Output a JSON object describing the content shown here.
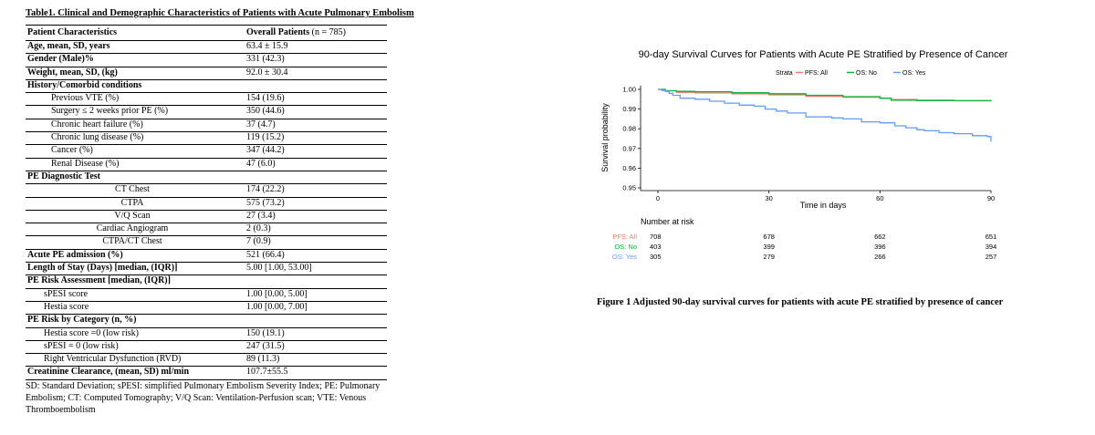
{
  "table": {
    "title": "Table1. Clinical and Demographic Characteristics of Patients with Acute Pulmonary Embolism",
    "header": {
      "col1": "Patient Characteristics",
      "col2_bold": "Overall Patients",
      "col2_rest": " (n = 785)"
    },
    "rows": [
      {
        "label": "Age, mean, SD, years",
        "value": "63.4 ± 15.9",
        "style": "bold"
      },
      {
        "label": "Gender (Male)%",
        "value": "331 (42.3)",
        "style": "bold"
      },
      {
        "label": "Weight, mean, SD, (kg)",
        "value": "92.0 ± 30.4",
        "style": "bold"
      },
      {
        "label": "History/Comorbid conditions",
        "value": "",
        "style": "bold"
      },
      {
        "label": "Previous VTE (%)",
        "value": "154 (19.6)",
        "style": "i1"
      },
      {
        "label": "Surgery ≤ 2 weeks prior PE (%)",
        "value": "350 (44.6)",
        "style": "i1"
      },
      {
        "label": "Chronic heart failure (%)",
        "value": "37 (4.7)",
        "style": "i1"
      },
      {
        "label": "Chronic lung disease (%)",
        "value": "119 (15.2)",
        "style": "i1"
      },
      {
        "label": "Cancer (%)",
        "value": "347 (44.2)",
        "style": "i1"
      },
      {
        "label": "Renal Disease (%)",
        "value": "47 (6.0)",
        "style": "i1"
      },
      {
        "label": "PE Diagnostic Test",
        "value": "",
        "style": "bold"
      },
      {
        "label": "CT Chest",
        "value": "174 (22.2)",
        "style": "ct"
      },
      {
        "label": "CTPA",
        "value": "575 (73.2)",
        "style": "ct"
      },
      {
        "label": "V/Q Scan",
        "value": "27 (3.4)",
        "style": "ct"
      },
      {
        "label": "Cardiac Angiogram",
        "value": "2 (0.3)",
        "style": "ct"
      },
      {
        "label": "CTPA/CT Chest",
        "value": "7 (0.9)",
        "style": "ct"
      },
      {
        "label": "Acute PE admission (%)",
        "value": "521 (66.4)",
        "style": "bold"
      },
      {
        "label": "Length of Stay (Days) [median, (IQR)]",
        "value": "5.00 [1.00, 53.00]",
        "style": "bold"
      },
      {
        "label": "PE Risk Assessment [median, (IQR)]",
        "value": "",
        "style": "bold"
      },
      {
        "label": "sPESI score",
        "value": "1.00 [0.00, 5.00]",
        "style": "i2"
      },
      {
        "label": "Hestia score",
        "value": "1.00 [0.00, 7.00]",
        "style": "i2"
      },
      {
        "label": "PE Risk by Category (n, %)",
        "value": "",
        "style": "bold"
      },
      {
        "label": "Hestia score =0 (low risk)",
        "value": "150 (19.1)",
        "style": "i2"
      },
      {
        "label": "sPESI = 0 (low risk)",
        "value": "247 (31.5)",
        "style": "i2"
      },
      {
        "label": "Right Ventricular Dysfunction (RVD)",
        "value": "89 (11.3)",
        "style": "i2"
      },
      {
        "label": "Creatinine Clearance, (mean, SD) ml/min",
        "value": "107.7±55.5",
        "style": "bold"
      }
    ],
    "footnote": "SD: Standard Deviation; sPESI: simplified Pulmonary Embolism Severity Index; PE: Pulmonary Embolism; CT: Computed Tomography; V/Q Scan: Ventilation-Perfusion scan; VTE: Venous Thromboembolism"
  },
  "figure": {
    "caption": "Figure 1 Adjusted 90-day survival curves for patients with acute PE stratified by presence of cancer"
  },
  "chart_data": {
    "type": "line",
    "title": "90-day Survival Curves for Patients with Acute PE Stratified by Presence of Cancer",
    "xlabel": "Time in days",
    "ylabel": "Survival probability",
    "xlim": [
      0,
      90
    ],
    "ylim": [
      0.95,
      1.0
    ],
    "x_ticks": [
      0,
      30,
      60,
      90
    ],
    "y_ticks": [
      0.95,
      0.96,
      0.97,
      0.98,
      0.99,
      1.0
    ],
    "y_tick_labels": [
      "0.95",
      "0.96",
      "0.97",
      "0.98",
      "0.99",
      "1.00"
    ],
    "legend": {
      "title": "Strata",
      "position": "top"
    },
    "series": [
      {
        "name": "PFS: All",
        "color": "#f8766d",
        "x": [
          0,
          2,
          5,
          10,
          20,
          30,
          40,
          50,
          60,
          63,
          70,
          80,
          90
        ],
        "y": [
          1.0,
          0.9993,
          0.9985,
          0.9982,
          0.9978,
          0.9972,
          0.9965,
          0.996,
          0.9955,
          0.9948,
          0.9945,
          0.9943,
          0.994
        ]
      },
      {
        "name": "OS: No",
        "color": "#00ba38",
        "x": [
          0,
          2,
          5,
          10,
          20,
          30,
          40,
          50,
          60,
          63,
          70,
          80,
          90
        ],
        "y": [
          1.0,
          0.9993,
          0.999,
          0.9988,
          0.9983,
          0.9978,
          0.997,
          0.9963,
          0.9955,
          0.9945,
          0.9943,
          0.9942,
          0.994
        ]
      },
      {
        "name": "OS: Yes",
        "color": "#619cff",
        "x": [
          0,
          1,
          2,
          3,
          4,
          6,
          10,
          14,
          18,
          22,
          26,
          29,
          32,
          35,
          40,
          47,
          50,
          55,
          60,
          64,
          67,
          70,
          72,
          76,
          80,
          85,
          89,
          90
        ],
        "y": [
          1.0,
          0.9995,
          0.999,
          0.998,
          0.997,
          0.9955,
          0.995,
          0.994,
          0.993,
          0.992,
          0.9915,
          0.99,
          0.989,
          0.988,
          0.986,
          0.9855,
          0.985,
          0.9835,
          0.983,
          0.9815,
          0.9805,
          0.9795,
          0.979,
          0.978,
          0.9775,
          0.9765,
          0.976,
          0.9735
        ]
      }
    ],
    "risk_table": {
      "title": "Number at risk",
      "times": [
        0,
        30,
        60,
        90
      ],
      "rows": [
        {
          "name": "PFS: All",
          "color": "#f8766d",
          "values": [
            708,
            678,
            662,
            651
          ]
        },
        {
          "name": "OS: No",
          "color": "#00ba38",
          "values": [
            403,
            399,
            396,
            394
          ]
        },
        {
          "name": "OS: Yes",
          "color": "#619cff",
          "values": [
            305,
            279,
            266,
            257
          ]
        }
      ]
    }
  }
}
